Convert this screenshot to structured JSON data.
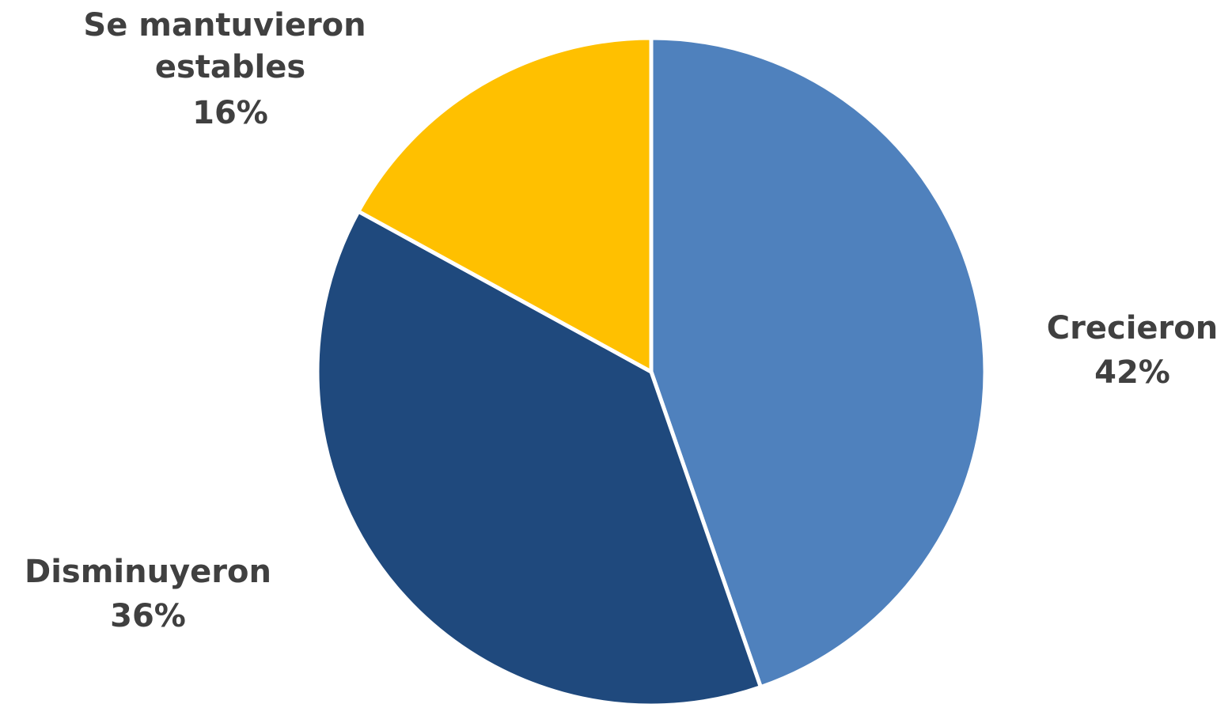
{
  "chart_data": {
    "type": "pie",
    "title": "",
    "slices": [
      {
        "label": "Crecieron",
        "value": 42,
        "value_label": "42%",
        "color": "#4F81BD"
      },
      {
        "label": "Disminuyeron",
        "value": 36,
        "value_label": "36%",
        "color": "#1F497D"
      },
      {
        "label": "Se mantuvieron estables",
        "value": 16,
        "value_label": "16%",
        "color": "#FFC000"
      }
    ],
    "start_angle": "12 o'clock",
    "direction": "clockwise",
    "legend": "none"
  }
}
